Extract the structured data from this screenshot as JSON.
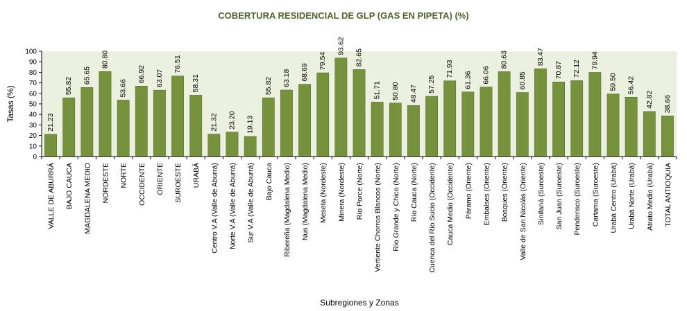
{
  "chart_data": {
    "type": "bar",
    "title": "COBERTURA RESIDENCIAL DE GLP (GAS EN PIPETA) (%)",
    "xlabel": "Subregiones y Zonas",
    "ylabel": "Tasas (%)",
    "ylim": [
      0,
      100
    ],
    "yticks": [
      0,
      10,
      20,
      30,
      40,
      50,
      60,
      70,
      80,
      90,
      100
    ],
    "grid": false,
    "bar_color": "#76923c",
    "bar_edge_color": "#4f6228",
    "plot_background": "#ebf1de",
    "title_color": "#4f6228",
    "categories": [
      "VALLE DE ABURRÁ",
      "BAJO CAUCA",
      "MAGDALENA MEDIO",
      "NORDESTE",
      "NORTE",
      "OCCIDENTE",
      "ORIENTE",
      "SUROESTE",
      "URABÁ",
      "Centro V.A (Valle de Aburrá)",
      "Norte V.A (Valle de Aburrá)",
      "Sur V.A (Valle de Aburrá)",
      "Bajo Cauca",
      "Ribereña  (Magdalena Medio)",
      "Nus  (Magdalena Medio)",
      "Meseta  (Nordeste)",
      "Minera  (Nordeste)",
      "Río Porce   (Norte)",
      "Vertiente Chorros Blancos  (Norte)",
      "Río Grande y Chico  (Norte)",
      "Río Cauca  (Norte)",
      "Cuenca del Río Sucio  (Occidente)",
      "Cauca Medio  (Occidente)",
      "Páramo  (Oriente)",
      "Embalses  (Oriente)",
      "Bosques  (Oriente)",
      "Valle de San Nicolás  (Oriente)",
      "Sinifaná  (Suroeste)",
      "San Juan  (Suroeste)",
      "Penderisco  (Suroeste)",
      "Cartama  (Suroeste)",
      "Urabá Centro  (Urabá)",
      "Urabá Norte  (Urabá)",
      "Atrato Medio  (Urabá)",
      "TOTAL ANTIOQUIA"
    ],
    "values": [
      21.23,
      55.82,
      65.65,
      80.8,
      53.66,
      66.92,
      63.07,
      76.51,
      58.31,
      21.32,
      23.2,
      19.13,
      55.82,
      63.18,
      68.69,
      79.54,
      93.62,
      82.65,
      51.71,
      50.8,
      48.47,
      57.25,
      71.93,
      61.36,
      66.06,
      80.63,
      60.85,
      83.47,
      70.87,
      72.12,
      79.94,
      59.5,
      56.42,
      42.82,
      38.66
    ],
    "value_labels": [
      "21.23",
      "55.82",
      "65.65",
      "80.80",
      "53.66",
      "66.92",
      "63.07",
      "76.51",
      "58.31",
      "21.32",
      "23.20",
      "19.13",
      "55.82",
      "63.18",
      "68.69",
      "79.54",
      "93.62",
      "82.65",
      "51.71",
      "50.80",
      "48.47",
      "57.25",
      "71.93",
      "61.36",
      "66.06",
      "80.63",
      "60.85",
      "83.47",
      "70.87",
      "72.12",
      "79.94",
      "59.50",
      "56.42",
      "42.82",
      "38.66"
    ]
  }
}
